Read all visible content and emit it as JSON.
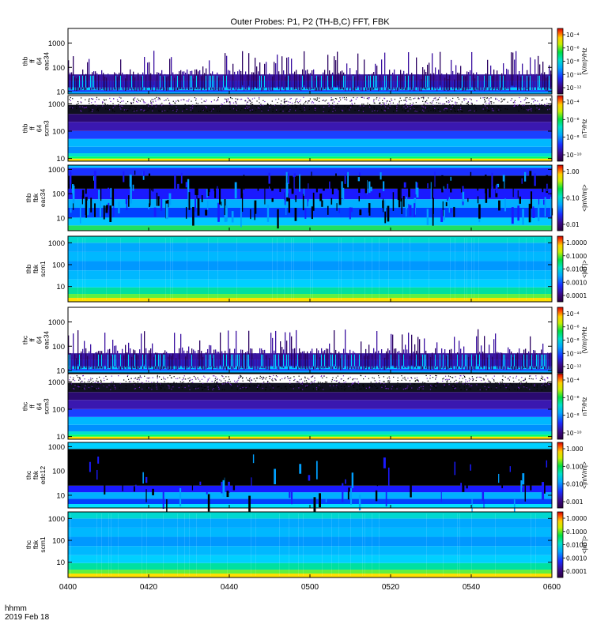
{
  "chart_data": {
    "type": "heatmap",
    "title": "Outer Probes: P1, P2 (TH-B,C) FFT, FBK",
    "footer": {
      "line1": "hhmm",
      "line2": "2019 Feb 18"
    },
    "x_ticks": [
      "0400",
      "0420",
      "0440",
      "0500",
      "0520",
      "0540",
      "0600"
    ],
    "x_range_minutes": [
      0,
      120
    ],
    "panels": [
      {
        "id": "thb-ff-eac34",
        "ylabel": [
          "thb",
          "ff",
          "64",
          "eac34"
        ],
        "yticks": [
          {
            "label": "1000",
            "v": 1000
          },
          {
            "label": "100",
            "v": 100
          },
          {
            "label": "10",
            "v": 10
          }
        ],
        "ylog": [
          8,
          4000
        ],
        "cbar_ticks": [
          "10⁻⁴",
          "10⁻⁶",
          "10⁻⁸",
          "10⁻¹⁰",
          "10⁻¹²"
        ],
        "cbar_label": "(V/m)²/Hz",
        "style": "eac"
      },
      {
        "id": "thb-ff-scm3",
        "ylabel": [
          "thb",
          "ff",
          "64",
          "scm3"
        ],
        "yticks": [
          {
            "label": "1000",
            "v": 1000
          },
          {
            "label": "100",
            "v": 100
          },
          {
            "label": "10",
            "v": 10
          }
        ],
        "ylog": [
          8,
          2000
        ],
        "cbar_ticks": [
          "10⁻⁴",
          "10⁻⁶",
          "10⁻⁸",
          "10⁻¹⁰"
        ],
        "cbar_label": "nT²/Hz",
        "style": "scm_ff"
      },
      {
        "id": "thb-fbk-eac34",
        "ylabel": [
          "thb",
          "fbk",
          "eac34"
        ],
        "yticks": [
          {
            "label": "1000",
            "v": 1000
          },
          {
            "label": "100",
            "v": 100
          },
          {
            "label": "10",
            "v": 10
          }
        ],
        "ylog": [
          3,
          1500
        ],
        "cbar_ticks": [
          "1.00",
          "0.10",
          "0.01"
        ],
        "cbar_label": "<|mV/m|>",
        "style": "fbk_e"
      },
      {
        "id": "thb-fbk-scm1",
        "ylabel": [
          "thb",
          "fbk",
          "scm1"
        ],
        "yticks": [
          {
            "label": "1000",
            "v": 1000
          },
          {
            "label": "100",
            "v": 100
          },
          {
            "label": "10",
            "v": 10
          }
        ],
        "ylog": [
          2,
          2000
        ],
        "cbar_ticks": [
          "1.0000",
          "0.1000",
          "0.0100",
          "0.0010",
          "0.0001"
        ],
        "cbar_label": "<|nT|>",
        "style": "fbk_b"
      },
      {
        "id": "thc-ff-eac34",
        "ylabel": [
          "thc",
          "ff",
          "64",
          "eac34"
        ],
        "yticks": [
          {
            "label": "1000",
            "v": 1000
          },
          {
            "label": "100",
            "v": 100
          },
          {
            "label": "10",
            "v": 10
          }
        ],
        "ylog": [
          8,
          4000
        ],
        "cbar_ticks": [
          "10⁻⁴",
          "10⁻⁶",
          "10⁻⁸",
          "10⁻¹⁰",
          "10⁻¹²"
        ],
        "cbar_label": "(V/m)²/Hz",
        "style": "eac"
      },
      {
        "id": "thc-ff-scm3",
        "ylabel": [
          "thc",
          "ff",
          "64",
          "scm3"
        ],
        "yticks": [
          {
            "label": "1000",
            "v": 1000
          },
          {
            "label": "100",
            "v": 100
          },
          {
            "label": "10",
            "v": 10
          }
        ],
        "ylog": [
          8,
          2000
        ],
        "cbar_ticks": [
          "10⁻⁴",
          "10⁻⁶",
          "10⁻⁸",
          "10⁻¹⁰"
        ],
        "cbar_label": "nT²/Hz",
        "style": "scm_ff"
      },
      {
        "id": "thc-fbk-edc12",
        "ylabel": [
          "thc",
          "fbk",
          "edc12"
        ],
        "yticks": [
          {
            "label": "1000",
            "v": 1000
          },
          {
            "label": "100",
            "v": 100
          },
          {
            "label": "10",
            "v": 10
          }
        ],
        "ylog": [
          3,
          1500
        ],
        "cbar_ticks": [
          "1.000",
          "0.100",
          "0.010",
          "0.001"
        ],
        "cbar_label": "<|mV/m|>",
        "style": "fbk_e2"
      },
      {
        "id": "thc-fbk-scm1",
        "ylabel": [
          "thc",
          "fbk",
          "scm1"
        ],
        "yticks": [
          {
            "label": "1000",
            "v": 1000
          },
          {
            "label": "100",
            "v": 100
          },
          {
            "label": "10",
            "v": 10
          }
        ],
        "ylog": [
          2,
          2000
        ],
        "cbar_ticks": [
          "1.0000",
          "0.1000",
          "0.0100",
          "0.0010",
          "0.0001"
        ],
        "cbar_label": "<|nT|>",
        "style": "fbk_b"
      }
    ]
  }
}
